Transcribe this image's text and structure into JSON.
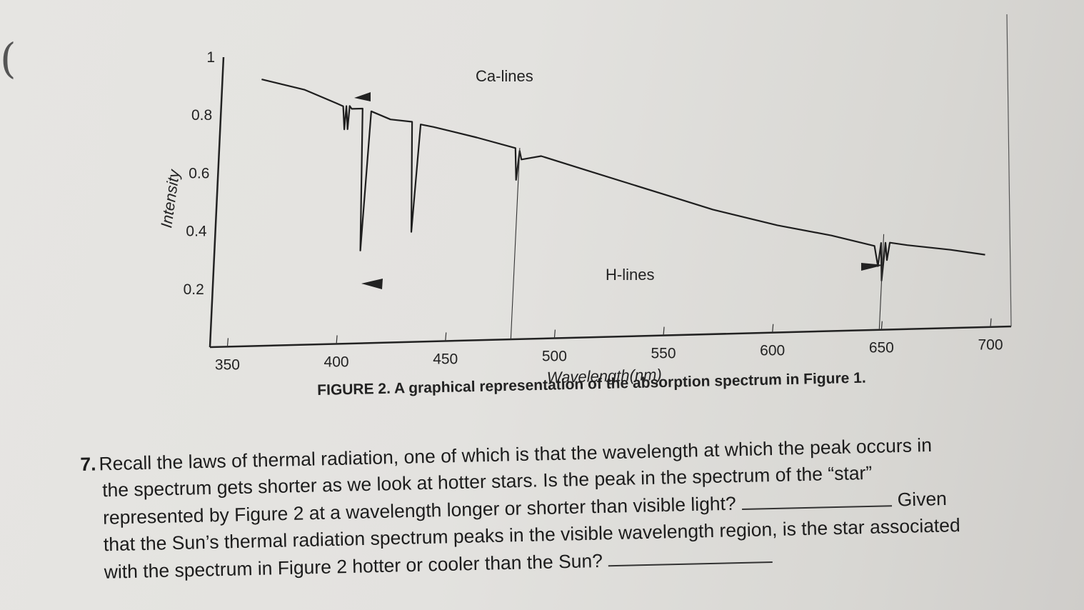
{
  "chart_data": {
    "type": "line",
    "title": "",
    "xlabel": "Wavelength(nm)",
    "ylabel": "Intensity",
    "xlim": [
      350,
      700
    ],
    "ylim": [
      0,
      1
    ],
    "x_ticks": [
      "350",
      "400",
      "450",
      "500",
      "550",
      "600",
      "650",
      "700"
    ],
    "y_ticks": [
      "0.2",
      "0.4",
      "0.6",
      "0.8",
      "1"
    ],
    "grid": false,
    "series": [
      {
        "values": [
          [
            360,
            0.92
          ],
          [
            380,
            0.88
          ],
          [
            395,
            0.83
          ],
          [
            398,
            0.82
          ],
          [
            399,
            0.74
          ],
          [
            399.5,
            0.82
          ],
          [
            400.5,
            0.74
          ],
          [
            401,
            0.82
          ],
          [
            402,
            0.81
          ],
          [
            407,
            0.81
          ],
          [
            409,
            0.32
          ],
          [
            411,
            0.8
          ],
          [
            420,
            0.77
          ],
          [
            430,
            0.76
          ],
          [
            432,
            0.38
          ],
          [
            434,
            0.75
          ],
          [
            440,
            0.74
          ],
          [
            460,
            0.7
          ],
          [
            478,
            0.66
          ],
          [
            479,
            0.55
          ],
          [
            480,
            0.65
          ],
          [
            481,
            0.62
          ],
          [
            490,
            0.63
          ],
          [
            510,
            0.58
          ],
          [
            530,
            0.53
          ],
          [
            550,
            0.48
          ],
          [
            570,
            0.43
          ],
          [
            600,
            0.37
          ],
          [
            625,
            0.33
          ],
          [
            645,
            0.29
          ],
          [
            647,
            0.22
          ],
          [
            648,
            0.3
          ],
          [
            649,
            0.17
          ],
          [
            650,
            0.3
          ],
          [
            651,
            0.24
          ],
          [
            652,
            0.3
          ],
          [
            660,
            0.29
          ],
          [
            680,
            0.27
          ],
          [
            696,
            0.25
          ]
        ]
      }
    ],
    "annotations": [
      "Ca-lines",
      "H-lines"
    ]
  },
  "figure_caption": "FIGURE 2. A graphical representation of the absorption spectrum in Figure 1.",
  "question": {
    "number": "7.",
    "line1": "Recall the laws of thermal radiation, one of which is that the wavelength at which the peak occurs in",
    "line2": "the spectrum gets shorter as we look at hotter stars. Is the peak in the spectrum of the “star”",
    "line3a": "represented by Figure 2 at a wavelength longer or shorter than visible light?",
    "line3b": "Given",
    "line4": "that the Sun’s thermal radiation spectrum peaks in the visible wavelength region, is the star associated",
    "line5": "with the spectrum in Figure 2 hotter or cooler than the Sun?"
  },
  "colors": {
    "ink": "#222222",
    "paper": "#e3e2df"
  }
}
